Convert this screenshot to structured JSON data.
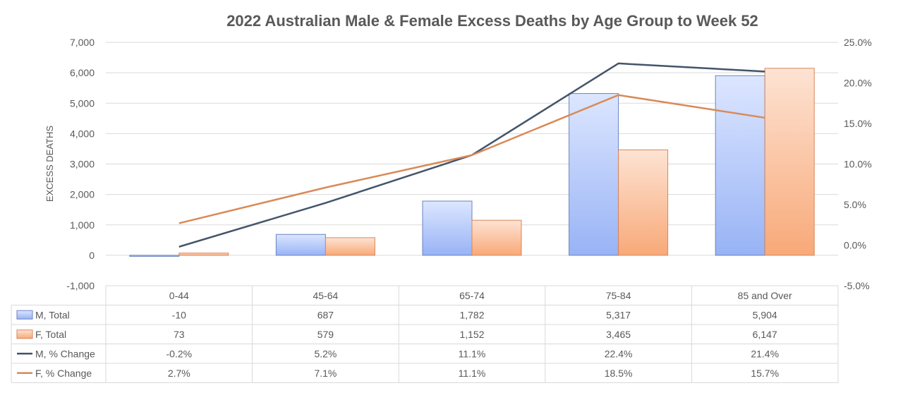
{
  "chart_data": {
    "type": "bar",
    "title": "2022 Australian  Male & Female Excess Deaths by Age Group to Week 52",
    "ylabel": "EXCESS DEATHS",
    "categories": [
      "0-44",
      "45-64",
      "65-74",
      "75-84",
      "85 and Over"
    ],
    "y_left": {
      "ylim": [
        -1000,
        7000
      ],
      "ticks": [
        -1000,
        0,
        1000,
        2000,
        3000,
        4000,
        5000,
        6000,
        7000
      ],
      "tick_labels": [
        "-1,000",
        "0",
        "1,000",
        "2,000",
        "3,000",
        "4,000",
        "5,000",
        "6,000",
        "7,000"
      ]
    },
    "y_right": {
      "ylim": [
        -5.0,
        25.0
      ],
      "ticks": [
        -5,
        0,
        5,
        10,
        15,
        20,
        25
      ],
      "tick_labels": [
        "-5.0%",
        "0.0%",
        "5.0%",
        "10.0%",
        "15.0%",
        "20.0%",
        "25.0%"
      ]
    },
    "grid": true,
    "legend": "data table below chart",
    "series": [
      {
        "name": "M, Total",
        "kind": "bar",
        "axis": "left",
        "values": [
          -10,
          687,
          1782,
          5317,
          5904
        ],
        "labels": [
          "-10",
          "687",
          "1,782",
          "5,317",
          "5,904"
        ],
        "color_top": "#dce6ff",
        "color_bottom": "#98b3f5",
        "stroke": "#6a83c0"
      },
      {
        "name": "F, Total",
        "kind": "bar",
        "axis": "left",
        "values": [
          73,
          579,
          1152,
          3465,
          6147
        ],
        "labels": [
          "73",
          "579",
          "1,152",
          "3,465",
          "6,147"
        ],
        "color_top": "#fde3d3",
        "color_bottom": "#f8a978",
        "stroke": "#d9865a"
      },
      {
        "name": "M, % Change",
        "kind": "line",
        "axis": "right",
        "values": [
          -0.2,
          5.2,
          11.1,
          22.4,
          21.4
        ],
        "labels": [
          "-0.2%",
          "5.2%",
          "11.1%",
          "22.4%",
          "21.4%"
        ],
        "color": "#44546a"
      },
      {
        "name": "F, % Change",
        "kind": "line",
        "axis": "right",
        "values": [
          2.7,
          7.1,
          11.1,
          18.5,
          15.7
        ],
        "labels": [
          "2.7%",
          "7.1%",
          "11.1%",
          "18.5%",
          "15.7%"
        ],
        "color": "#d98a57"
      }
    ]
  }
}
